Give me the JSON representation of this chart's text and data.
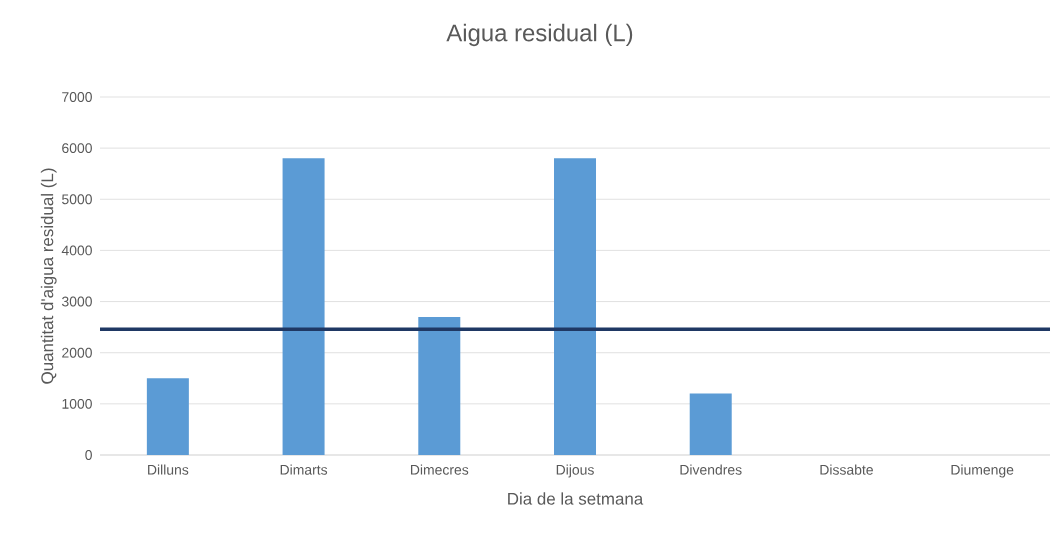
{
  "chart_data": {
    "type": "bar",
    "title": "Aigua residual (L)",
    "xlabel": "Dia de la setmana",
    "ylabel": "Quantitat d'aigua residual (L)",
    "categories": [
      "Dilluns",
      "Dimarts",
      "Dimecres",
      "Dijous",
      "Divendres",
      "Dissabte",
      "Diumenge"
    ],
    "values": [
      1500,
      5800,
      2700,
      5800,
      1200,
      0,
      0
    ],
    "color": "#5b9bd5",
    "ylim": [
      0,
      7000
    ],
    "yticks": [
      0,
      1000,
      2000,
      3000,
      4000,
      5000,
      6000,
      7000
    ],
    "grid": "y",
    "ref_lines": [
      {
        "axis": "y",
        "value": 2460,
        "color": "#1f3864"
      }
    ]
  }
}
